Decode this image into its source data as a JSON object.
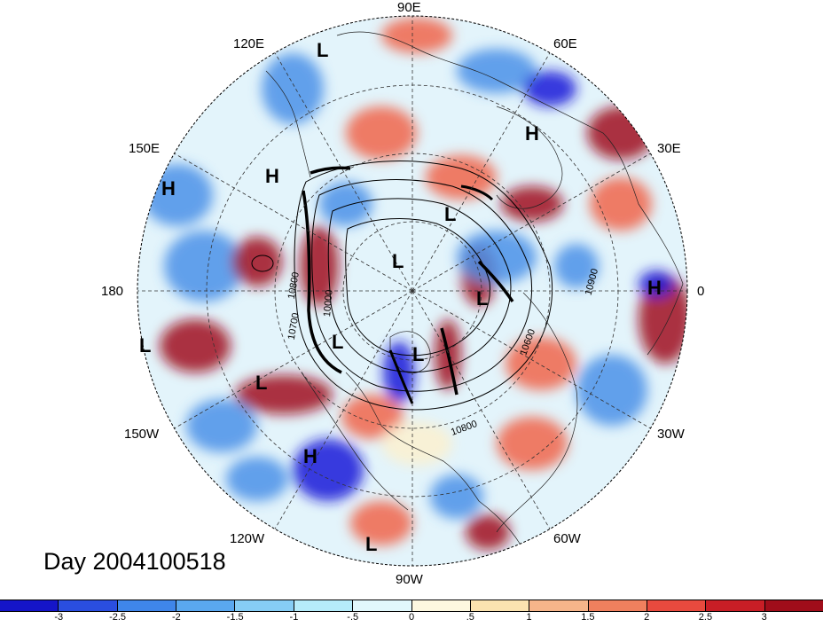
{
  "map": {
    "projection": "north-polar-stereographic",
    "longitude_labels": [
      "90E",
      "60E",
      "30E",
      "0",
      "30W",
      "60W",
      "90W",
      "120W",
      "150W",
      "180",
      "150E",
      "120E"
    ],
    "pressure_centers": [
      "L",
      "H",
      "H",
      "H",
      "L",
      "L",
      "L",
      "H",
      "L",
      "L",
      "L",
      "L",
      "H",
      "L"
    ],
    "contour_labels": [
      "10800",
      "10700",
      "10000",
      "10900",
      "10600",
      "10800"
    ],
    "colors": {
      "anomaly_negative_strong": "#1a1ad8",
      "anomaly_negative": "#4a90e8",
      "anomaly_neutral_cool": "#dff5fb",
      "anomaly_neutral_warm": "#fbf0cf",
      "anomaly_positive": "#f0644a",
      "anomaly_positive_strong": "#a0101e",
      "contour": "#000000"
    }
  },
  "day_label": "Day 2004100518",
  "colorbar": {
    "colors": [
      "#1515c8",
      "#2a4ee0",
      "#3f86ea",
      "#5aa8f0",
      "#86cdf5",
      "#b6ecfa",
      "#e2f8fc",
      "#fdf8e0",
      "#fbe3b0",
      "#f6b58a",
      "#f0805e",
      "#e84a3e",
      "#c81e26",
      "#a00d1a"
    ],
    "tick_labels": [
      "-3",
      "-2.5",
      "-2",
      "-1.5",
      "-1",
      "-.5",
      "0",
      ".5",
      "1",
      "1.5",
      "2",
      "2.5",
      "3"
    ]
  }
}
